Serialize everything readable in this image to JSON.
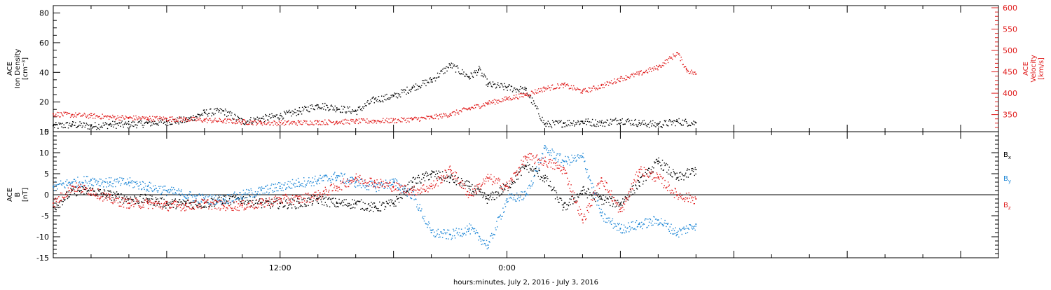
{
  "colors": {
    "black": "#000000",
    "red": "#e01b1b",
    "blue": "#1c86d6",
    "background": "#ffffff"
  },
  "chart_data": [
    {
      "type": "scatter",
      "panel": "plasma",
      "ylabel_left": [
        "ACE",
        "Ion Density",
        "[cm⁻³]"
      ],
      "ylabel_right": [
        "ACE",
        "Velocity",
        "[km/s]"
      ],
      "ylim_left": [
        0,
        85
      ],
      "yticks_left": [
        "0",
        "20",
        "40",
        "60",
        "80"
      ],
      "ylim_right": [
        310,
        605
      ],
      "yticks_right": [
        "350",
        "400",
        "450",
        "500",
        "550",
        "600"
      ],
      "series": [
        {
          "axis": "left",
          "color": "black",
          "x": [
            0.0,
            1.0,
            2.0,
            3.0,
            4.0,
            5.0,
            6.0,
            7.0,
            8.0,
            9.0,
            10.0,
            11.0,
            12.0,
            13.0,
            14.0,
            15.0,
            16.0,
            17.0,
            18.0,
            19.0,
            20.0,
            21.0,
            22.0,
            22.5,
            23.0,
            24.0,
            25.0,
            26.0,
            27.0,
            28.0,
            29.0,
            30.0,
            31.0,
            32.0,
            33.0,
            34.0
          ],
          "y": [
            4,
            5,
            4,
            5,
            5,
            6,
            7,
            8,
            13,
            14,
            7,
            9,
            11,
            14,
            18,
            16,
            14,
            22,
            24,
            30,
            35,
            45,
            37,
            42,
            32,
            30,
            28,
            5,
            6,
            7,
            6,
            8,
            6,
            5,
            7,
            6
          ]
        },
        {
          "axis": "right",
          "color": "red",
          "x": [
            0.0,
            1.0,
            2.0,
            3.0,
            4.0,
            5.0,
            6.0,
            7.0,
            8.0,
            9.0,
            10.0,
            11.0,
            12.0,
            13.0,
            14.0,
            15.0,
            16.0,
            17.0,
            18.0,
            19.0,
            20.0,
            21.0,
            22.0,
            23.0,
            24.0,
            25.0,
            26.0,
            27.0,
            28.0,
            29.0,
            30.0,
            31.0,
            32.0,
            33.0,
            33.5,
            34.0
          ],
          "y": [
            352,
            350,
            348,
            345,
            343,
            342,
            341,
            340,
            338,
            336,
            334,
            332,
            331,
            332,
            333,
            334,
            335,
            336,
            337,
            340,
            344,
            352,
            365,
            378,
            388,
            398,
            412,
            420,
            405,
            418,
            435,
            447,
            462,
            495,
            455,
            445
          ]
        }
      ]
    },
    {
      "type": "scatter",
      "panel": "magnetic-field",
      "ylabel_left": [
        "ACE",
        "B",
        "[nT]"
      ],
      "ylim": [
        -15,
        15
      ],
      "yticks": [
        "-15",
        "-10",
        "-5",
        "0",
        "5",
        "10",
        "15"
      ],
      "zero_line": true,
      "legend": [
        "Bx",
        "By",
        "Bz"
      ],
      "series": [
        {
          "name": "Bx",
          "color": "black",
          "x": [
            0.0,
            1.0,
            2.0,
            3.0,
            4.0,
            5.0,
            6.0,
            7.0,
            8.0,
            9.0,
            10.0,
            11.0,
            12.0,
            13.0,
            14.0,
            15.0,
            16.0,
            17.0,
            18.0,
            19.0,
            20.0,
            21.0,
            22.0,
            23.0,
            24.0,
            25.0,
            26.0,
            27.0,
            28.0,
            29.0,
            30.0,
            31.0,
            32.0,
            33.0,
            34.0
          ],
          "y": [
            -3,
            1,
            1,
            0,
            -1,
            -1,
            -2,
            -2,
            -2,
            -1,
            -1,
            -2,
            -2,
            -2,
            -1,
            -2,
            -2,
            -3,
            -2,
            3,
            5,
            4,
            2,
            -1,
            2,
            7,
            4,
            -3,
            1,
            -1,
            -2,
            3,
            8,
            4,
            6
          ]
        },
        {
          "name": "By",
          "color": "blue",
          "x": [
            0.0,
            1.0,
            2.0,
            3.0,
            4.0,
            5.0,
            6.0,
            7.0,
            8.0,
            9.0,
            10.0,
            11.0,
            12.0,
            13.0,
            14.0,
            15.0,
            16.0,
            17.0,
            18.0,
            19.0,
            20.0,
            21.0,
            22.0,
            23.0,
            24.0,
            25.0,
            26.0,
            27.0,
            28.0,
            29.0,
            30.0,
            31.0,
            32.0,
            33.0,
            34.0
          ],
          "y": [
            2,
            3,
            3.5,
            3,
            3,
            2,
            1,
            0,
            -1,
            -1,
            0,
            1,
            2,
            3,
            3.5,
            4.5,
            3,
            2,
            3,
            0,
            -9,
            -9.5,
            -8,
            -12,
            -1,
            0,
            11,
            8,
            9,
            -5,
            -8,
            -7,
            -6,
            -9,
            -7
          ]
        },
        {
          "name": "Bz",
          "color": "red",
          "x": [
            0.0,
            1.0,
            2.0,
            3.0,
            4.0,
            5.0,
            6.0,
            7.0,
            8.0,
            9.0,
            10.0,
            11.0,
            12.0,
            13.0,
            14.0,
            15.0,
            16.0,
            17.0,
            18.0,
            19.0,
            20.0,
            21.0,
            22.0,
            23.0,
            24.0,
            25.0,
            26.0,
            27.0,
            28.0,
            29.0,
            30.0,
            31.0,
            32.0,
            33.0,
            34.0
          ],
          "y": [
            -2,
            2,
            1,
            -1,
            -2,
            -2,
            -2.5,
            -2.5,
            -2,
            -2.5,
            -2.5,
            -2,
            -1,
            -1,
            0,
            2,
            4,
            3,
            2,
            1,
            2,
            6,
            0,
            4,
            2,
            9,
            8,
            6,
            -6,
            4,
            -4,
            6,
            4,
            0,
            -1
          ]
        }
      ]
    }
  ],
  "x_axis": {
    "tick_labels": [
      "12:00",
      "0:00"
    ],
    "tick_label_hours": [
      12,
      24
    ],
    "xlim": [
      0,
      50
    ],
    "xlabel": "hours:minutes, July  2, 2016 - July  3, 2016"
  }
}
